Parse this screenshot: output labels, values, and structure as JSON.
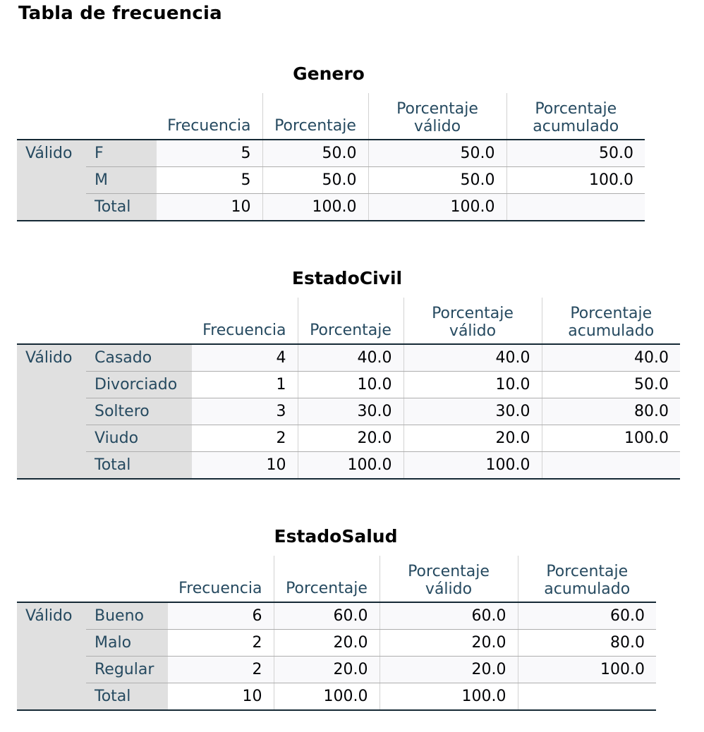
{
  "page_title": "Tabla de frecuencia",
  "headers": {
    "frecuencia": "Frecuencia",
    "porcentaje": "Porcentaje",
    "porc_valido": [
      "Porcentaje",
      "válido"
    ],
    "porc_acumulado": [
      "Porcentaje",
      "acumulado"
    ]
  },
  "tables": [
    {
      "title": "Genero",
      "group": "Válido",
      "rows": [
        {
          "label": "F",
          "frecuencia": "5",
          "porcentaje": "50.0",
          "valido": "50.0",
          "acumulado": "50.0"
        },
        {
          "label": "M",
          "frecuencia": "5",
          "porcentaje": "50.0",
          "valido": "50.0",
          "acumulado": "100.0"
        },
        {
          "label": "Total",
          "frecuencia": "10",
          "porcentaje": "100.0",
          "valido": "100.0",
          "acumulado": ""
        }
      ]
    },
    {
      "title": "EstadoCivil",
      "group": "Válido",
      "rows": [
        {
          "label": "Casado",
          "frecuencia": "4",
          "porcentaje": "40.0",
          "valido": "40.0",
          "acumulado": "40.0"
        },
        {
          "label": "Divorciado",
          "frecuencia": "1",
          "porcentaje": "10.0",
          "valido": "10.0",
          "acumulado": "50.0"
        },
        {
          "label": "Soltero",
          "frecuencia": "3",
          "porcentaje": "30.0",
          "valido": "30.0",
          "acumulado": "80.0"
        },
        {
          "label": "Viudo",
          "frecuencia": "2",
          "porcentaje": "20.0",
          "valido": "20.0",
          "acumulado": "100.0"
        },
        {
          "label": "Total",
          "frecuencia": "10",
          "porcentaje": "100.0",
          "valido": "100.0",
          "acumulado": ""
        }
      ]
    },
    {
      "title": "EstadoSalud",
      "group": "Válido",
      "rows": [
        {
          "label": "Bueno",
          "frecuencia": "6",
          "porcentaje": "60.0",
          "valido": "60.0",
          "acumulado": "60.0"
        },
        {
          "label": "Malo",
          "frecuencia": "2",
          "porcentaje": "20.0",
          "valido": "20.0",
          "acumulado": "80.0"
        },
        {
          "label": "Regular",
          "frecuencia": "2",
          "porcentaje": "20.0",
          "valido": "20.0",
          "acumulado": "100.0"
        },
        {
          "label": "Total",
          "frecuencia": "10",
          "porcentaje": "100.0",
          "valido": "100.0",
          "acumulado": ""
        }
      ]
    }
  ]
}
